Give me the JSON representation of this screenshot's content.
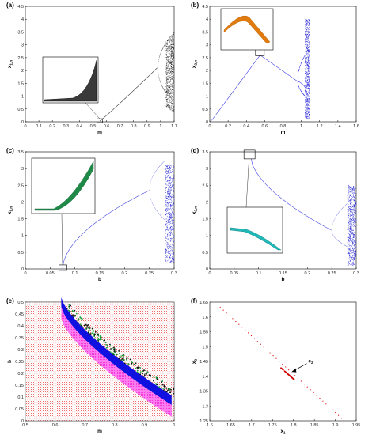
{
  "figure": {
    "panels": [
      {
        "id": "a",
        "label": "(a)",
        "xlabel": "m",
        "ylabel": "x",
        "ylabel_sub": "1,n",
        "xticks": [
          "0",
          "0.1",
          "0.2",
          "0.3",
          "0.4",
          "0.5",
          "0.6",
          "0.7",
          "0.8",
          "0.9",
          "1",
          "1.1"
        ],
        "yticks": [
          "0",
          "0.5",
          "1",
          "1.5",
          "2",
          "2.5",
          "3",
          "3.5",
          "4",
          "4.5"
        ]
      },
      {
        "id": "b",
        "label": "(b)",
        "xlabel": "m",
        "ylabel": "x",
        "ylabel_sub": "2,n",
        "xticks": [
          "0",
          "0.2",
          "0.4",
          "0.6",
          "0.8",
          "1",
          "1.2",
          "1.4",
          "1.6"
        ],
        "yticks": [
          "0",
          "0.5",
          "1",
          "1.5",
          "2",
          "2.5",
          "3",
          "3.5",
          "4",
          "4.5"
        ]
      },
      {
        "id": "c",
        "label": "(c)",
        "xlabel": "b",
        "ylabel": "x",
        "ylabel_sub": "1,n",
        "xticks": [
          "0",
          "0.05",
          "0.1",
          "0.15",
          "0.2",
          "0.25",
          "0.3"
        ],
        "yticks": [
          "0",
          "0.5",
          "1",
          "1.5",
          "2",
          "2.5",
          "3",
          "3.5"
        ]
      },
      {
        "id": "d",
        "label": "(d)",
        "xlabel": "b",
        "ylabel": "x",
        "ylabel_sub": "2,n",
        "xticks": [
          "0",
          "0.05",
          "0.1",
          "0.15",
          "0.2",
          "0.25",
          "0.3"
        ],
        "yticks": [
          "0",
          "0.5",
          "1",
          "1.5",
          "2",
          "2.5",
          "3",
          "3.5"
        ]
      },
      {
        "id": "e",
        "label": "(e)",
        "xlabel": "m",
        "ylabel": "b",
        "ylabel_sub": "",
        "xticks": [
          "0.5",
          "0.6",
          "0.7",
          "0.8",
          "0.9",
          "1"
        ],
        "yticks": [
          "0",
          "0.05",
          "0.1",
          "0.15",
          "0.2",
          "0.25",
          "0.3",
          "0.35",
          "0.4",
          "0.45",
          "0.5"
        ]
      },
      {
        "id": "f",
        "label": "(f)",
        "xlabel": "x",
        "xlabel_sub": "1",
        "ylabel": "x",
        "ylabel_sub": "2",
        "xticks": [
          "1.6",
          "1.65",
          "1.7",
          "1.75",
          "1.8",
          "1.85",
          "1.9",
          "1.95"
        ],
        "yticks": [
          "1.25",
          "1.3",
          "1.35",
          "1.4",
          "1.45",
          "1.5",
          "1.55",
          "1.6",
          "1.65"
        ],
        "annotation": "e",
        "annotation_sub": "2"
      }
    ]
  },
  "chart_data": [
    {
      "type": "scatter",
      "title": "",
      "xlabel": "m",
      "ylabel": "x1,n",
      "xlim": [
        0,
        1.1
      ],
      "ylim": [
        0,
        4.5
      ],
      "description_series": [
        {
          "name": "",
          "x": [
            0.55,
            0.7,
            0.9,
            0.98,
            1.03,
            1.05,
            1.1
          ],
          "values": [
            0.03,
            0.9,
            1.8,
            2.1,
            2.0,
            3.2,
            3.5
          ]
        }
      ]
    },
    {
      "type": "scatter",
      "title": "",
      "xlabel": "m",
      "ylabel": "x2,n",
      "xlim": [
        0,
        1.6
      ],
      "ylim": [
        0,
        4.5
      ],
      "description_series": [
        {
          "name": "",
          "x": [
            0,
            0.55,
            1.0,
            1.05,
            1.08
          ],
          "values": [
            0,
            2.6,
            1.55,
            2.2,
            0.8
          ]
        }
      ]
    },
    {
      "type": "scatter",
      "title": "",
      "xlabel": "b",
      "ylabel": "x1,n",
      "xlim": [
        0,
        0.3
      ],
      "ylim": [
        0,
        3.5
      ],
      "description_series": [
        {
          "name": "",
          "x": [
            0.07,
            0.1,
            0.15,
            0.2,
            0.25,
            0.28,
            0.3
          ],
          "values": [
            0,
            0.8,
            1.6,
            2.1,
            2.35,
            2.9,
            2.2
          ]
        }
      ]
    },
    {
      "type": "scatter",
      "title": "",
      "xlabel": "b",
      "ylabel": "x2,n",
      "xlim": [
        0,
        0.3
      ],
      "ylim": [
        0,
        3.5
      ],
      "description_series": [
        {
          "name": "",
          "x": [
            0.07,
            0.1,
            0.15,
            0.2,
            0.25,
            0.28,
            0.3
          ],
          "values": [
            3.4,
            2.6,
            1.9,
            1.45,
            1.15,
            1.7,
            0.9
          ]
        }
      ]
    },
    {
      "type": "heatmap",
      "title": "",
      "xlabel": "m",
      "ylabel": "b",
      "xlim": [
        0.5,
        1.08
      ],
      "ylim": [
        0,
        0.5
      ]
    },
    {
      "type": "scatter",
      "title": "",
      "xlabel": "x1",
      "ylabel": "x2",
      "xlim": [
        1.6,
        1.95
      ],
      "ylim": [
        1.22,
        1.68
      ],
      "annotation": "e2"
    }
  ]
}
